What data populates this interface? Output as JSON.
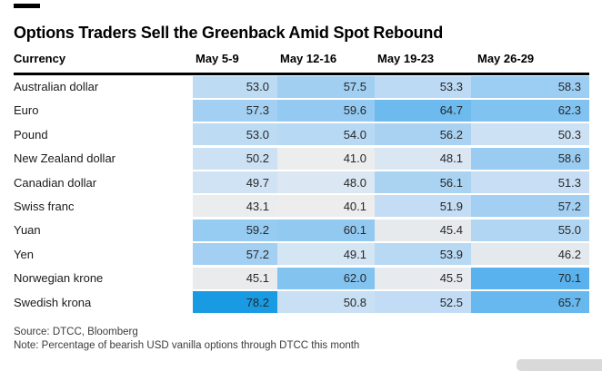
{
  "meta": {
    "title": "Options Traders Sell the Greenback Amid Spot Rebound"
  },
  "table": {
    "row_header_label": "Currency",
    "columns": [
      "May 5-9",
      "May 12-16",
      "May 19-23",
      "May 26-29"
    ],
    "rows": [
      {
        "label": "Australian dollar",
        "values": [
          53.0,
          57.5,
          53.3,
          58.3
        ]
      },
      {
        "label": "Euro",
        "values": [
          57.3,
          59.6,
          64.7,
          62.3
        ]
      },
      {
        "label": "Pound",
        "values": [
          53.0,
          54.0,
          56.2,
          50.3
        ]
      },
      {
        "label": "New Zealand dollar",
        "values": [
          50.2,
          41.0,
          48.1,
          58.6
        ]
      },
      {
        "label": "Canadian dollar",
        "values": [
          49.7,
          48.0,
          56.1,
          51.3
        ]
      },
      {
        "label": "Swiss franc",
        "values": [
          43.1,
          40.1,
          51.9,
          57.2
        ]
      },
      {
        "label": "Yuan",
        "values": [
          59.2,
          60.1,
          45.4,
          55.0
        ]
      },
      {
        "label": "Yen",
        "values": [
          57.2,
          49.1,
          53.9,
          46.2
        ]
      },
      {
        "label": "Norwegian krone",
        "values": [
          45.1,
          62.0,
          45.5,
          70.1
        ]
      },
      {
        "label": "Swedish krona",
        "values": [
          78.2,
          50.8,
          52.5,
          65.7
        ]
      }
    ]
  },
  "footer": {
    "source": "Source: DTCC, Bloomberg",
    "note": "Note: Percentage of bearish USD vanilla options through DTCC this month"
  },
  "colors": {
    "title_text": "#000000",
    "header_rule": "#000000",
    "label_text": "#1a1a1a",
    "cell_text": "#28282a",
    "footer_text": "#3c3c3c",
    "watermark": "#d9d9d9",
    "heat_min": "#ededed",
    "heat_max": "#199be3",
    "scale_stops": [
      [
        40.0,
        "#ededed"
      ],
      [
        45.0,
        "#e9ebed"
      ],
      [
        47.0,
        "#e0e8ef"
      ],
      [
        49.0,
        "#d5e5f4"
      ],
      [
        51.0,
        "#c8dff4"
      ],
      [
        53.0,
        "#bedbf4"
      ],
      [
        55.0,
        "#b1d6f3"
      ],
      [
        57.0,
        "#a4d0f2"
      ],
      [
        59.0,
        "#97cbf2"
      ],
      [
        61.0,
        "#8dc7f1"
      ],
      [
        63.0,
        "#79bfef"
      ],
      [
        65.0,
        "#6ab9ee"
      ],
      [
        68.0,
        "#5fb4ee"
      ],
      [
        72.0,
        "#53aeec"
      ],
      [
        78.2,
        "#199be3"
      ]
    ]
  },
  "chart_data": {
    "type": "heatmap",
    "title": "Options Traders Sell the Greenback Amid Spot Rebound",
    "row_axis_label": "Currency",
    "columns": [
      "May 5-9",
      "May 12-16",
      "May 19-23",
      "May 26-29"
    ],
    "rows": [
      "Australian dollar",
      "Euro",
      "Pound",
      "New Zealand dollar",
      "Canadian dollar",
      "Swiss franc",
      "Yuan",
      "Yen",
      "Norwegian krone",
      "Swedish krona"
    ],
    "values": [
      [
        53.0,
        57.5,
        53.3,
        58.3
      ],
      [
        57.3,
        59.6,
        64.7,
        62.3
      ],
      [
        53.0,
        54.0,
        56.2,
        50.3
      ],
      [
        50.2,
        41.0,
        48.1,
        58.6
      ],
      [
        49.7,
        48.0,
        56.1,
        51.3
      ],
      [
        43.1,
        40.1,
        51.9,
        57.2
      ],
      [
        59.2,
        60.1,
        45.4,
        55.0
      ],
      [
        57.2,
        49.1,
        53.9,
        46.2
      ],
      [
        45.1,
        62.0,
        45.5,
        70.1
      ],
      [
        78.2,
        50.8,
        52.5,
        65.7
      ]
    ],
    "value_format": "one-decimal",
    "color_scale": {
      "min": 40.0,
      "max": 78.2,
      "min_color": "#ededed",
      "max_color": "#199be3",
      "legend_visible": false
    },
    "source": "Source: DTCC, Bloomberg",
    "note": "Note: Percentage of bearish USD vanilla options through DTCC this month"
  }
}
